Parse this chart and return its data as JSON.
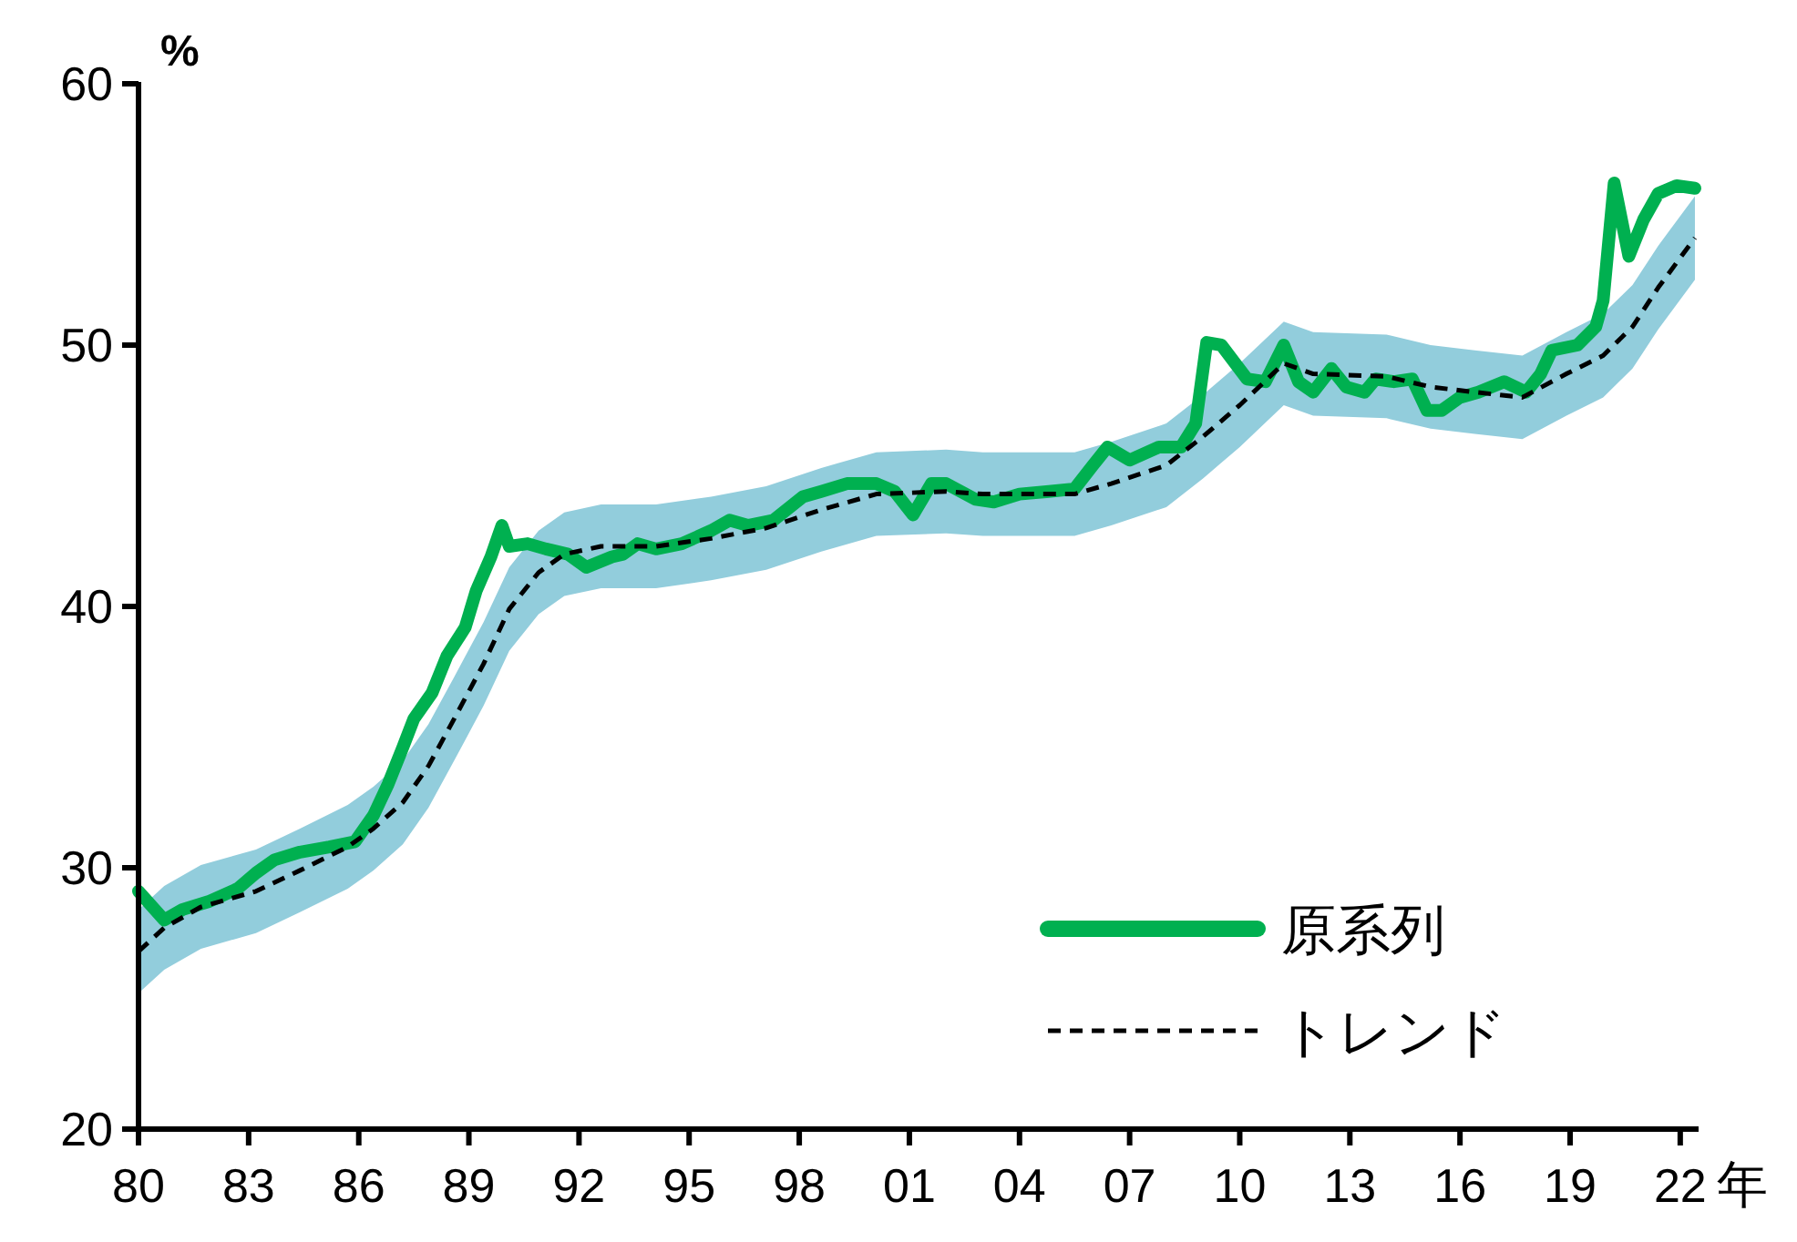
{
  "chart_data": {
    "type": "line",
    "xlabel": "年",
    "ylabel": "%",
    "xlim": [
      1980,
      2022.5
    ],
    "ylim": [
      20,
      60
    ],
    "xticks": [
      {
        "value": 1980,
        "label": "80"
      },
      {
        "value": 1983,
        "label": "83"
      },
      {
        "value": 1986,
        "label": "86"
      },
      {
        "value": 1989,
        "label": "89"
      },
      {
        "value": 1992,
        "label": "92"
      },
      {
        "value": 1995,
        "label": "95"
      },
      {
        "value": 1998,
        "label": "98"
      },
      {
        "value": 2001,
        "label": "01"
      },
      {
        "value": 2004,
        "label": "04"
      },
      {
        "value": 2007,
        "label": "07"
      },
      {
        "value": 2010,
        "label": "10"
      },
      {
        "value": 2013,
        "label": "13"
      },
      {
        "value": 2016,
        "label": "16"
      },
      {
        "value": 2019,
        "label": "19"
      },
      {
        "value": 2022,
        "label": "22"
      }
    ],
    "yticks": [
      20,
      30,
      40,
      50,
      60
    ],
    "grid": false,
    "legend": "bottom right",
    "marker": "none",
    "series": [
      {
        "name": "原系列",
        "color": "#00b050",
        "line_style": "solid",
        "x": [
          1980,
          1980.7,
          1981.2,
          1981.9,
          1982.7,
          1983.2,
          1983.7,
          1984.4,
          1985.2,
          1985.9,
          1986.4,
          1986.8,
          1987.2,
          1987.5,
          1988.0,
          1988.4,
          1988.9,
          1989.2,
          1989.6,
          1989.9,
          1990.1,
          1990.6,
          1991.1,
          1991.7,
          1992.2,
          1992.9,
          1993.2,
          1993.6,
          1994.1,
          1994.8,
          1995.6,
          1996.1,
          1996.6,
          1997.3,
          1998.1,
          1998.6,
          1999.3,
          2000.1,
          2000.6,
          2001.1,
          2001.6,
          2002.0,
          2002.8,
          2003.3,
          2004.0,
          2004.8,
          2005.5,
          2006.0,
          2006.4,
          2007.0,
          2007.8,
          2008.4,
          2008.8,
          2009.1,
          2009.5,
          2010.2,
          2010.7,
          2011.2,
          2011.6,
          2012.0,
          2012.5,
          2012.9,
          2013.4,
          2013.7,
          2014.2,
          2014.7,
          2015.1,
          2015.5,
          2016.0,
          2016.5,
          2017.2,
          2017.8,
          2018.2,
          2018.5,
          2019.2,
          2019.7,
          2019.9,
          2020.2,
          2020.6,
          2021.0,
          2021.4,
          2021.9,
          2022.4
        ],
        "values": [
          29.1,
          28.0,
          28.4,
          28.7,
          29.2,
          29.8,
          30.3,
          30.6,
          30.8,
          31.0,
          32.0,
          33.2,
          34.6,
          35.7,
          36.7,
          38.1,
          39.2,
          40.6,
          41.9,
          43.1,
          42.3,
          42.4,
          42.2,
          42.0,
          41.5,
          41.9,
          42.0,
          42.4,
          42.2,
          42.4,
          42.9,
          43.3,
          43.1,
          43.3,
          44.2,
          44.4,
          44.7,
          44.7,
          44.4,
          43.5,
          44.7,
          44.7,
          44.1,
          44.0,
          44.3,
          44.4,
          44.5,
          45.4,
          46.1,
          45.6,
          46.1,
          46.1,
          47.0,
          50.1,
          50.0,
          48.7,
          48.6,
          50.0,
          48.6,
          48.2,
          49.1,
          48.4,
          48.2,
          48.7,
          48.6,
          48.7,
          47.5,
          47.5,
          48.0,
          48.2,
          48.6,
          48.2,
          48.9,
          49.8,
          50.0,
          50.7,
          51.7,
          56.2,
          53.4,
          54.8,
          55.8,
          56.1,
          56.0
        ]
      },
      {
        "name": "トレンド",
        "color": "#000000",
        "line_style": "dashed",
        "x": [
          1980,
          1980.7,
          1981.7,
          1983.2,
          1984.4,
          1985.7,
          1986.4,
          1987.2,
          1987.9,
          1988.6,
          1989.4,
          1990.1,
          1990.9,
          1991.6,
          1992.6,
          1994.1,
          1995.6,
          1997.1,
          1998.6,
          2000.1,
          2002.0,
          2003.0,
          2005.5,
          2006.5,
          2008.0,
          2009.0,
          2010.0,
          2011.2,
          2012.0,
          2014.0,
          2015.2,
          2016.4,
          2017.7,
          2018.9,
          2019.9,
          2020.7,
          2021.4,
          2022.4
        ],
        "values": [
          26.8,
          27.7,
          28.5,
          29.1,
          29.9,
          30.8,
          31.5,
          32.5,
          33.9,
          35.7,
          37.8,
          39.9,
          41.3,
          42.0,
          42.3,
          42.3,
          42.6,
          43.0,
          43.7,
          44.3,
          44.4,
          44.3,
          44.3,
          44.7,
          45.4,
          46.5,
          47.7,
          49.3,
          48.9,
          48.8,
          48.4,
          48.2,
          48.0,
          48.9,
          49.6,
          50.7,
          52.2,
          54.1
        ],
        "lower": [
          25.2,
          26.1,
          26.9,
          27.5,
          28.3,
          29.2,
          29.9,
          30.9,
          32.3,
          34.1,
          36.2,
          38.3,
          39.7,
          40.4,
          40.7,
          40.7,
          41.0,
          41.4,
          42.1,
          42.7,
          42.8,
          42.7,
          42.7,
          43.1,
          43.8,
          44.9,
          46.1,
          47.7,
          47.3,
          47.2,
          46.8,
          46.6,
          46.4,
          47.3,
          48.0,
          49.1,
          50.6,
          52.5
        ],
        "upper": [
          28.4,
          29.3,
          30.1,
          30.7,
          31.5,
          32.4,
          33.1,
          34.1,
          35.5,
          37.3,
          39.4,
          41.5,
          42.9,
          43.6,
          43.9,
          43.9,
          44.2,
          44.6,
          45.3,
          45.9,
          46.0,
          45.9,
          45.9,
          46.3,
          47.0,
          48.1,
          49.3,
          50.9,
          50.5,
          50.4,
          50.0,
          49.8,
          49.6,
          50.5,
          51.2,
          52.3,
          53.8,
          55.7
        ]
      }
    ]
  }
}
